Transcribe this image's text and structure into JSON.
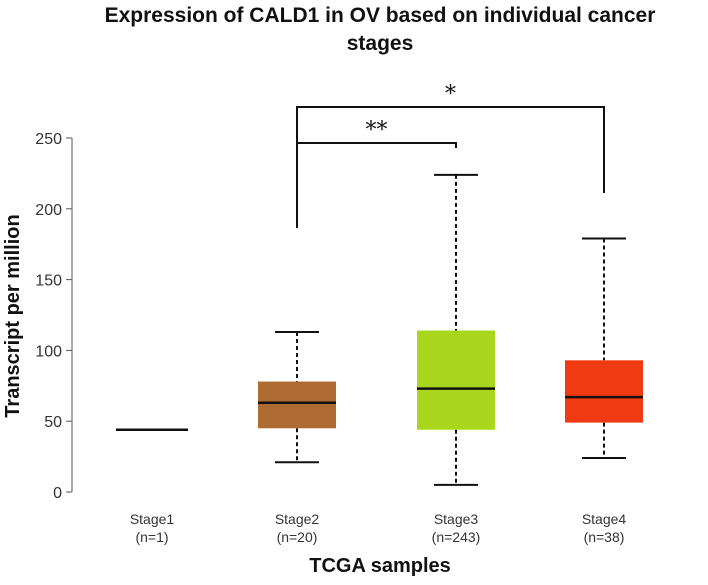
{
  "chart_data": {
    "type": "box",
    "title_lines": [
      "Expression of CALD1 in OV based on individual cancer",
      "stages"
    ],
    "xlabel": "TCGA samples",
    "ylabel": "Transcript per million",
    "ylim": [
      0,
      250
    ],
    "yticks": [
      0,
      50,
      100,
      150,
      200,
      250
    ],
    "grid": false,
    "categories": [
      {
        "name": "Stage1",
        "n_label": "(n=1)",
        "min": 44,
        "q1": 44,
        "median": 44,
        "q3": 44,
        "max": 44,
        "color": "#000000"
      },
      {
        "name": "Stage2",
        "n_label": "(n=20)",
        "min": 21,
        "q1": 45,
        "median": 63,
        "q3": 78,
        "max": 113,
        "color": "#b06b33"
      },
      {
        "name": "Stage3",
        "n_label": "(n=243)",
        "min": 5,
        "q1": 44,
        "median": 73,
        "q3": 114,
        "max": 224,
        "color": "#a9d61d"
      },
      {
        "name": "Stage4",
        "n_label": "(n=38)",
        "min": 24,
        "q1": 49,
        "median": 67,
        "q3": 93,
        "max": 179,
        "color": "#f03a12"
      }
    ],
    "significance": [
      {
        "from": "Stage2",
        "to": "Stage3",
        "label": "**"
      },
      {
        "from": "Stage2",
        "to": "Stage4",
        "label": "*"
      }
    ]
  }
}
